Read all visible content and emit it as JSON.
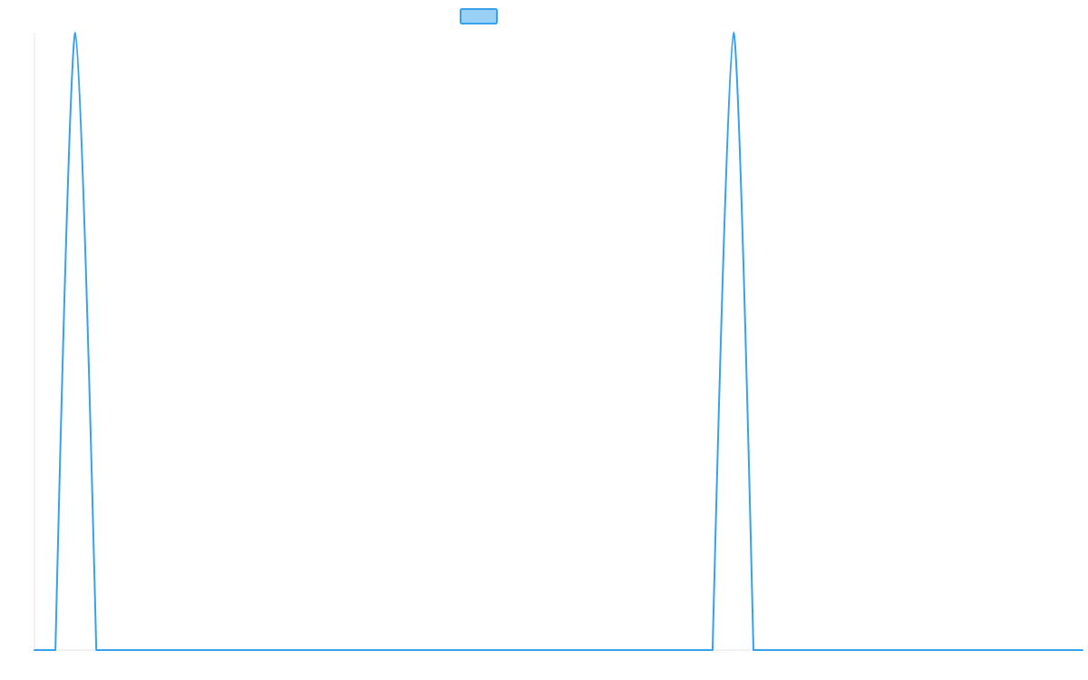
{
  "chart_data": {
    "type": "line",
    "title": "",
    "xlabel": "",
    "ylabel": "",
    "x_range": [
      0,
      1
    ],
    "y_range": [
      0,
      1
    ],
    "grid": false,
    "legend": {
      "position": "top-center",
      "show_label": false
    },
    "series": [
      {
        "color": "#36a2eb",
        "fill_color": "#9ad0f5",
        "points": [
          {
            "x": 0.0,
            "y": 0
          },
          {
            "x": 0.02,
            "y": 0
          },
          {
            "x": 0.039,
            "y": 1
          },
          {
            "x": 0.059,
            "y": 0
          },
          {
            "x": 0.647,
            "y": 0
          },
          {
            "x": 0.667,
            "y": 1
          },
          {
            "x": 0.686,
            "y": 0
          },
          {
            "x": 1.0,
            "y": 0
          }
        ]
      }
    ]
  }
}
